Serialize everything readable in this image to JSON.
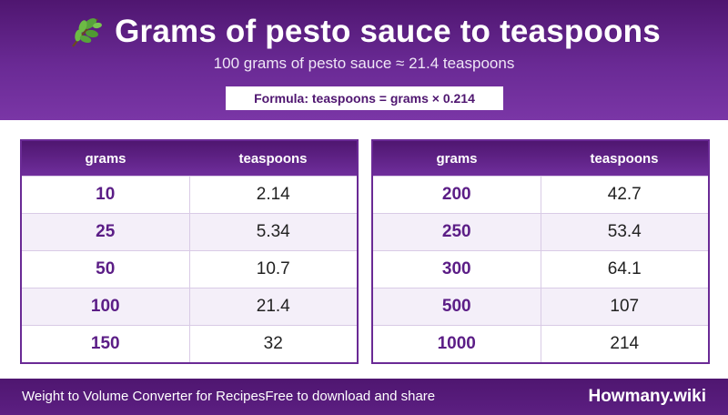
{
  "header": {
    "icon": "leaf-icon",
    "title": "Grams of pesto sauce to teaspoons",
    "subtitle": "100 grams of pesto sauce ≈ 21.4 teaspoons",
    "formula": "Formula: teaspoons = grams × 0.214"
  },
  "tables": [
    {
      "columns": [
        "grams",
        "teaspoons"
      ],
      "rows": [
        {
          "grams": "10",
          "teaspoons": "2.14"
        },
        {
          "grams": "25",
          "teaspoons": "5.34"
        },
        {
          "grams": "50",
          "teaspoons": "10.7"
        },
        {
          "grams": "100",
          "teaspoons": "21.4"
        },
        {
          "grams": "150",
          "teaspoons": "32"
        }
      ]
    },
    {
      "columns": [
        "grams",
        "teaspoons"
      ],
      "rows": [
        {
          "grams": "200",
          "teaspoons": "42.7"
        },
        {
          "grams": "250",
          "teaspoons": "53.4"
        },
        {
          "grams": "300",
          "teaspoons": "64.1"
        },
        {
          "grams": "500",
          "teaspoons": "107"
        },
        {
          "grams": "1000",
          "teaspoons": "214"
        }
      ]
    }
  ],
  "footer": {
    "left_text": "Weight to Volume Converter for Recipes",
    "right_text": "Free to download and share",
    "brand": "Howmany.wiki"
  },
  "colors": {
    "header_purple": "#4f1670",
    "accent_purple": "#6a2a95",
    "grams_text": "#5b1d86",
    "alt_row": "#f4eff9"
  }
}
